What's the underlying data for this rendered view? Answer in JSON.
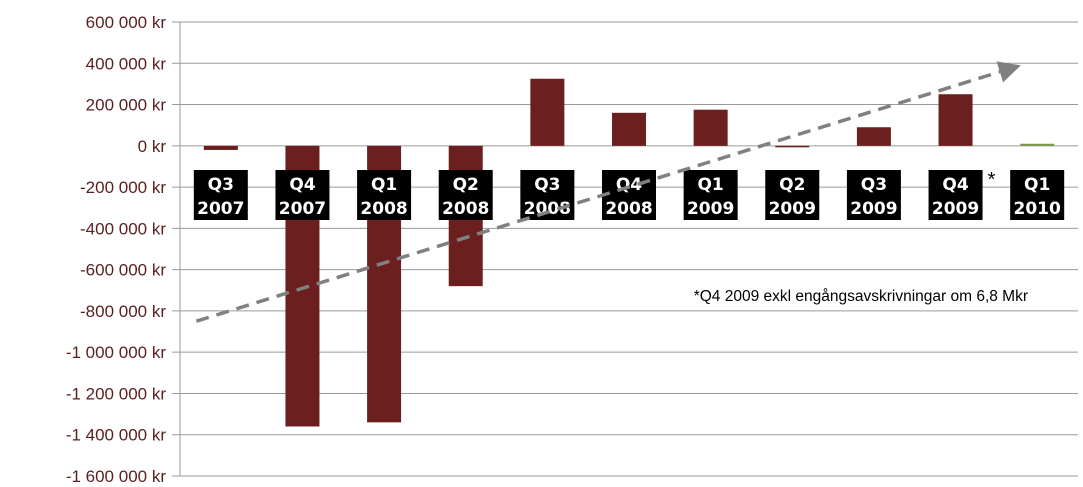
{
  "chart_data": {
    "type": "bar",
    "categories": [
      [
        "Q3",
        "2007"
      ],
      [
        "Q4",
        "2007"
      ],
      [
        "Q1",
        "2008"
      ],
      [
        "Q2",
        "2008"
      ],
      [
        "Q3",
        "2008"
      ],
      [
        "Q4",
        "2008"
      ],
      [
        "Q1",
        "2009"
      ],
      [
        "Q2",
        "2009"
      ],
      [
        "Q3",
        "2009"
      ],
      [
        "Q4",
        "2009"
      ],
      [
        "Q1",
        "2010"
      ]
    ],
    "values": [
      -20000,
      -1360000,
      -1340000,
      -680000,
      325000,
      160000,
      175000,
      0,
      90000,
      250000,
      10000
    ],
    "bar_colors": [
      "#6b1f1f",
      "#6b1f1f",
      "#6b1f1f",
      "#6b1f1f",
      "#6b1f1f",
      "#6b1f1f",
      "#6b1f1f",
      "#6b1f1f",
      "#6b1f1f",
      "#6b1f1f",
      "#7a9a4a"
    ],
    "ylim": [
      -1600000,
      600000
    ],
    "yticks": [
      600000,
      400000,
      200000,
      0,
      -200000,
      -400000,
      -600000,
      -800000,
      -1000000,
      -1200000,
      -1400000,
      -1600000
    ],
    "ytick_labels": [
      "600 000 kr",
      "400 000 kr",
      "200 000 kr",
      "0 kr",
      "-200 000 kr",
      "-400 000 kr",
      "-600 000 kr",
      "-800 000 kr",
      "-1 000 000 kr",
      "-1 200 000 kr",
      "-1 400 000 kr",
      "-1 600 000 kr"
    ],
    "grid": true,
    "trend_arrow": {
      "style": "dashed",
      "color": "#808080",
      "from": [
        0.2,
        -850000
      ],
      "to": [
        10.3,
        390000
      ]
    },
    "star_marker": {
      "category_index": 9,
      "text": "*"
    },
    "annotation": "*Q4 2009 exkl engångsavskrivningar om 6,8 Mkr",
    "colors": {
      "bar": "#6b1f1f",
      "last_bar": "#7a9a4a",
      "grid": "#9a9a9a",
      "axis_text": "#5a1f1f",
      "label_bg": "#000000"
    }
  }
}
